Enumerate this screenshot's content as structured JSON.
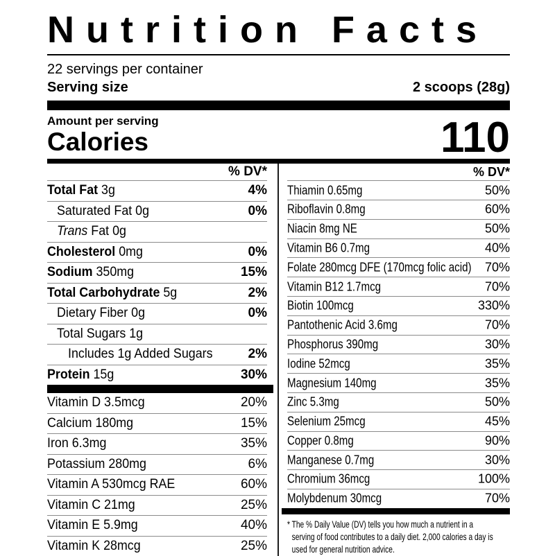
{
  "header": {
    "title": "Nutrition Facts",
    "servings_per_container": "22 servings per container",
    "serving_size_label": "Serving size",
    "serving_size_value": "2 scoops (28g)"
  },
  "calories": {
    "amount_label": "Amount per serving",
    "label": "Calories",
    "value": "110"
  },
  "left_column": {
    "dv_header": "% DV*",
    "rows": [
      {
        "bold": "Total Fat",
        "text": " 3g",
        "pct": "4%",
        "pct_bold": true,
        "indent": 0
      },
      {
        "text": "Saturated Fat 0g",
        "pct": "0%",
        "pct_bold": true,
        "indent": 1
      },
      {
        "italic": "Trans",
        "text": " Fat 0g",
        "pct": "",
        "indent": 1
      },
      {
        "bold": "Cholesterol",
        "text": " 0mg",
        "pct": "0%",
        "pct_bold": true,
        "indent": 0
      },
      {
        "bold": "Sodium",
        "text": " 350mg",
        "pct": "15%",
        "pct_bold": true,
        "indent": 0
      },
      {
        "bold": "Total Carbohydrate",
        "text": " 5g",
        "pct": "2%",
        "pct_bold": true,
        "indent": 0
      },
      {
        "text": "Dietary Fiber 0g",
        "pct": "0%",
        "pct_bold": true,
        "indent": 1
      },
      {
        "text": "Total Sugars 1g",
        "pct": "",
        "indent": 1
      },
      {
        "text": "Includes 1g Added Sugars",
        "pct": "2%",
        "pct_bold": true,
        "indent": 2
      },
      {
        "bold": "Protein",
        "text": " 15g",
        "pct": "30%",
        "pct_bold": true,
        "indent": 0,
        "bar_after": true
      },
      {
        "text": "Vitamin D 3.5mcg",
        "pct": "20%",
        "indent": 0
      },
      {
        "text": "Calcium 180mg",
        "pct": "15%",
        "indent": 0
      },
      {
        "text": "Iron 6.3mg",
        "pct": "35%",
        "indent": 0
      },
      {
        "text": "Potassium 280mg",
        "pct": "6%",
        "indent": 0
      },
      {
        "text": "Vitamin A 530mcg RAE",
        "pct": "60%",
        "indent": 0
      },
      {
        "text": "Vitamin C 21mg",
        "pct": "25%",
        "indent": 0
      },
      {
        "text": "Vitamin E 5.9mg",
        "pct": "40%",
        "indent": 0
      },
      {
        "text": "Vitamin K 28mcg",
        "pct": "25%",
        "indent": 0
      }
    ]
  },
  "right_column": {
    "dv_header": "% DV*",
    "rows": [
      {
        "text": "Thiamin 0.65mg",
        "pct": "50%",
        "indent": 0
      },
      {
        "text": "Riboflavin 0.8mg",
        "pct": "60%",
        "indent": 0
      },
      {
        "text": "Niacin 8mg NE",
        "pct": "50%",
        "indent": 0
      },
      {
        "text": "Vitamin B6 0.7mg",
        "pct": "40%",
        "indent": 0
      },
      {
        "text": "Folate 280mcg DFE (170mcg folic acid)",
        "pct": "70%",
        "indent": 0
      },
      {
        "text": "Vitamin B12 1.7mcg",
        "pct": "70%",
        "indent": 0
      },
      {
        "text": "Biotin 100mcg",
        "pct": "330%",
        "indent": 0
      },
      {
        "text": "Pantothenic Acid 3.6mg",
        "pct": "70%",
        "indent": 0
      },
      {
        "text": "Phosphorus 390mg",
        "pct": "30%",
        "indent": 0
      },
      {
        "text": "Iodine 52mcg",
        "pct": "35%",
        "indent": 0
      },
      {
        "text": "Magnesium 140mg",
        "pct": "35%",
        "indent": 0
      },
      {
        "text": "Zinc 5.3mg",
        "pct": "50%",
        "indent": 0
      },
      {
        "text": "Selenium 25mcg",
        "pct": "45%",
        "indent": 0
      },
      {
        "text": "Copper 0.8mg",
        "pct": "90%",
        "indent": 0
      },
      {
        "text": "Manganese 0.7mg",
        "pct": "30%",
        "indent": 0
      },
      {
        "text": "Chromium 36mcg",
        "pct": "100%",
        "indent": 0
      },
      {
        "text": "Molybdenum 30mcg",
        "pct": "70%",
        "indent": 0,
        "bar_after": true
      }
    ]
  },
  "footnote_lines": [
    "* The % Daily Value (DV) tells you how much a nutrient in a",
    "serving of food contributes to a daily diet. 2,000 calories a day is",
    "used for general nutrition advice."
  ],
  "colors": {
    "text": "#000000",
    "hairline": "#8a8a8a",
    "background": "#ffffff"
  }
}
